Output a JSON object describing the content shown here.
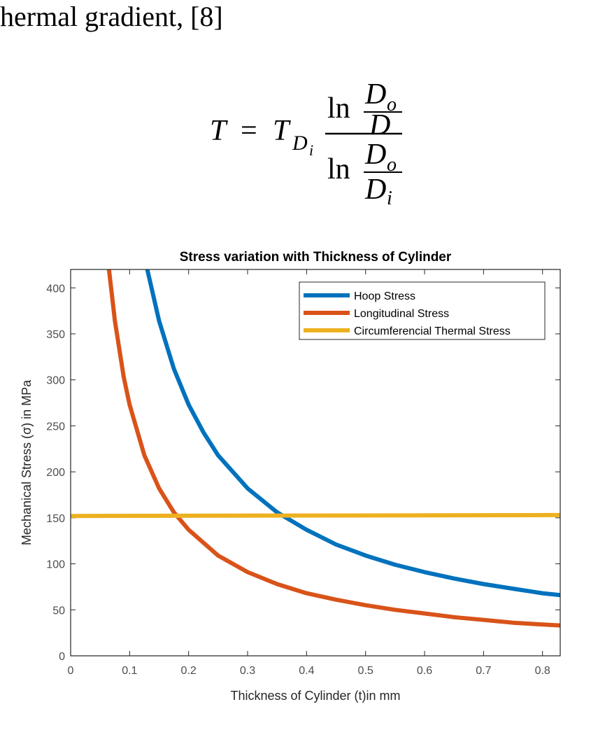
{
  "document": {
    "intro_text": "hermal gradient, [8]",
    "equation": {
      "lhs": "T",
      "equals": "=",
      "coef_main": "T",
      "coef_sub_main": "D",
      "coef_sub_sub": "i",
      "ln_top": "ln",
      "ln_bottom": "ln",
      "top_num_main": "D",
      "top_num_sub": "o",
      "top_den": "D",
      "bot_num_main": "D",
      "bot_num_sub": "o",
      "bot_den_main": "D",
      "bot_den_sub": "i"
    }
  },
  "chart_data": {
    "type": "line",
    "title": "Stress variation with Thickness of Cylinder",
    "xlabel": "Thickness of Cylinder (t)in mm",
    "ylabel": "Mechanical Stress (σ) in MPa",
    "xlim": [
      0,
      0.83
    ],
    "ylim": [
      0,
      420
    ],
    "xticks": [
      0,
      0.1,
      0.2,
      0.3,
      0.4,
      0.5,
      0.6,
      0.7,
      0.8
    ],
    "xtick_labels": [
      "0",
      "0.1",
      "0.2",
      "0.3",
      "0.4",
      "0.5",
      "0.6",
      "0.7",
      "0.8"
    ],
    "yticks": [
      0,
      50,
      100,
      150,
      200,
      250,
      300,
      350,
      400
    ],
    "ytick_labels": [
      "0",
      "50",
      "100",
      "150",
      "200",
      "250",
      "300",
      "350",
      "400"
    ],
    "grid": false,
    "legend_position": "top-right",
    "series": [
      {
        "name": "Hoop Stress",
        "color": "#0072BD",
        "x": [
          0.13,
          0.15,
          0.175,
          0.2,
          0.225,
          0.25,
          0.3,
          0.35,
          0.4,
          0.45,
          0.5,
          0.55,
          0.6,
          0.65,
          0.7,
          0.75,
          0.8,
          0.83
        ],
        "y": [
          420,
          364,
          312,
          273,
          243,
          218,
          182,
          156,
          137,
          121,
          109,
          99,
          91,
          84,
          78,
          73,
          68,
          66
        ]
      },
      {
        "name": "Longitudinal Stress",
        "color": "#D95319",
        "x": [
          0.065,
          0.075,
          0.09,
          0.1,
          0.125,
          0.15,
          0.175,
          0.2,
          0.25,
          0.3,
          0.35,
          0.4,
          0.45,
          0.5,
          0.55,
          0.6,
          0.65,
          0.7,
          0.75,
          0.8,
          0.83
        ],
        "y": [
          420,
          364,
          303,
          273,
          218,
          182,
          156,
          137,
          109,
          91,
          78,
          68,
          61,
          55,
          50,
          46,
          42,
          39,
          36,
          34,
          33
        ]
      },
      {
        "name": "Circumferencial Thermal Stress",
        "color": "#EDB120",
        "x": [
          0,
          0.83
        ],
        "y": [
          152,
          153
        ]
      }
    ]
  }
}
